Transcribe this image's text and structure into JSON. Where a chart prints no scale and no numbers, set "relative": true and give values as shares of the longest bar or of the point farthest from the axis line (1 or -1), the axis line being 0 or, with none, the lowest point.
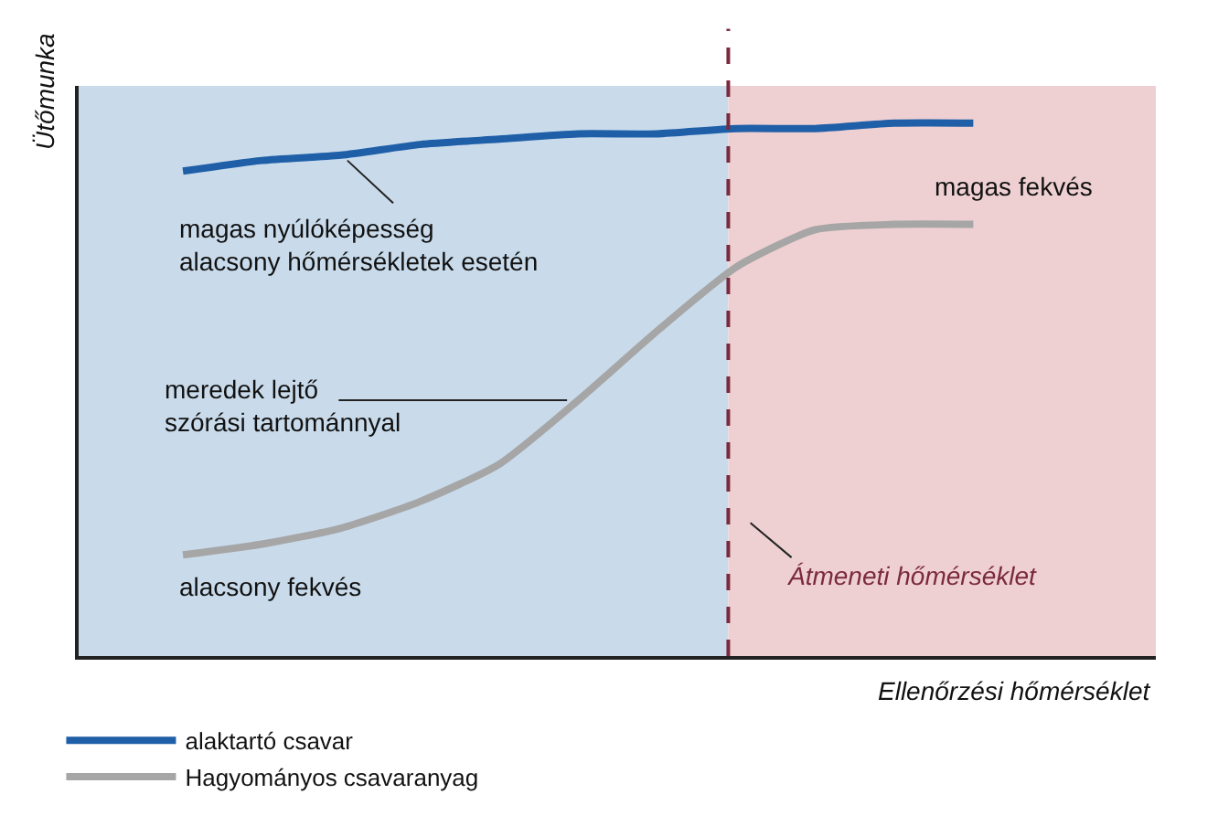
{
  "chart_data": {
    "type": "line",
    "relative": true,
    "xlabel": "Ellenőrzési hőmérséklet",
    "ylabel": "Ütőmunka",
    "categories": [
      null,
      null,
      null,
      null,
      null,
      null,
      null,
      null,
      null,
      null,
      null
    ],
    "series": [
      {
        "name": "alaktartó csavar",
        "color": "#1f5fa8",
        "values": [
          0.91,
          0.93,
          0.94,
          0.96,
          0.97,
          0.98,
          0.98,
          0.99,
          0.99,
          1.0,
          1.0
        ]
      },
      {
        "name": "Hagyományos csavaranyag",
        "color": "#a6a6a6",
        "values": [
          0.19,
          0.21,
          0.24,
          0.29,
          0.36,
          0.48,
          0.61,
          0.73,
          0.8,
          0.81,
          0.81
        ]
      }
    ],
    "annotations": [
      "magas nyúlóképesség\nalacsony hőmérsékletek esetén",
      "meredek lejtő\nszórási tartománnyal",
      "alacsony fekvés",
      "magas fekvés",
      "Átmeneti hőmérséklet"
    ],
    "grid": false,
    "legend": "bottom",
    "tick_labels": false,
    "marker": "none",
    "line_style": "solid"
  }
}
